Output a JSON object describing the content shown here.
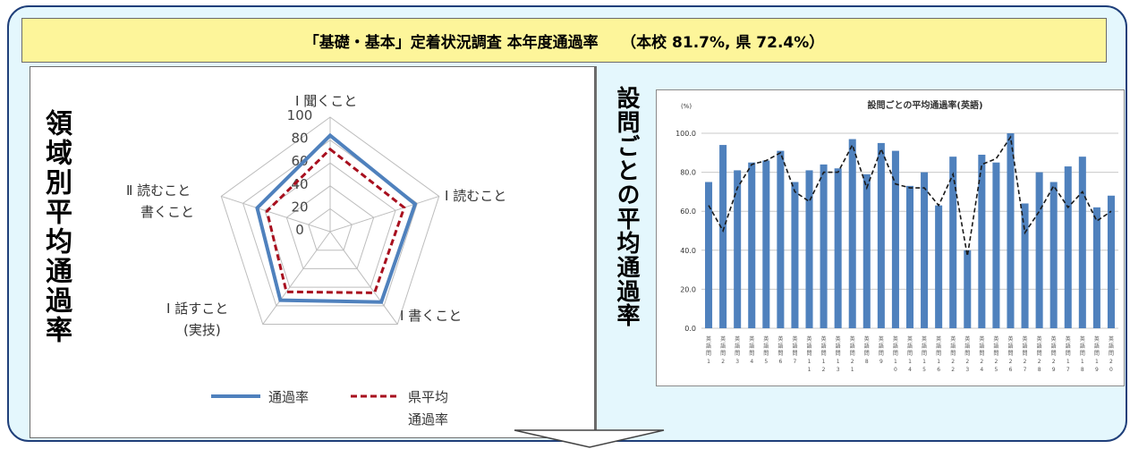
{
  "header": {
    "title": "「基礎・基本」定着状況調査  本年度通過率　　（本校  81.7%, 県  72.4%）"
  },
  "left_vertical_title": "領域別平均通過率",
  "right_vertical_title": "設問ごとの平均通過率",
  "chart_data": [
    {
      "type": "radar",
      "axes": [
        "Ⅰ 聞くこと",
        "Ⅰ 読むこと",
        "Ⅰ 書くこと",
        "Ⅰ 話すこと(実技)",
        "Ⅱ 読むこと書くこと"
      ],
      "ticks": [
        "0",
        "20",
        "40",
        "60",
        "80",
        "100"
      ],
      "range": [
        0,
        100
      ],
      "series": [
        {
          "name": "通過率",
          "color": "#4f81bd",
          "style": "solid",
          "values": [
            84,
            78,
            76,
            74,
            67
          ]
        },
        {
          "name": "県平均通過率",
          "color": "#a80f1e",
          "style": "dashed",
          "values": [
            72,
            68,
            66,
            65,
            58
          ]
        }
      ]
    },
    {
      "type": "bar",
      "title": "設問ごとの平均通過率(英語)",
      "ylabel": "(%)",
      "ylim": [
        0,
        100
      ],
      "yticks": [
        "0.0",
        "20.0",
        "40.0",
        "60.0",
        "80.0",
        "100.0"
      ],
      "grid": true,
      "categories": [
        "1",
        "2",
        "3",
        "4",
        "5",
        "6",
        "7",
        "8",
        "9",
        "10",
        "11",
        "12",
        "13",
        "14",
        "15",
        "16",
        "17",
        "18",
        "19",
        "20",
        "21",
        "22",
        "23",
        "24",
        "25",
        "26",
        "27",
        "28",
        "29"
      ],
      "category_labels": [
        "1",
        "2",
        "3",
        "4",
        "5",
        "6",
        "7",
        "11",
        "12",
        "13",
        "21",
        "8",
        "9",
        "10",
        "14",
        "15",
        "16",
        "22",
        "23",
        "24",
        "25",
        "26",
        "27",
        "28",
        "29",
        "17",
        "18",
        "19",
        "20"
      ],
      "series": [
        {
          "name": "本校",
          "type": "bar",
          "color": "#4f81bd",
          "values": [
            75,
            94,
            81,
            85,
            86,
            91,
            75,
            81,
            84,
            82,
            97,
            79,
            95,
            91,
            73,
            80,
            63,
            88,
            40,
            89,
            85,
            100,
            64,
            80,
            75,
            83,
            88,
            62,
            68
          ]
        },
        {
          "name": "県",
          "type": "line",
          "color": "#1a1a1a",
          "style": "dashed",
          "values": [
            63,
            50,
            72,
            84,
            86,
            90,
            70,
            65,
            80,
            80,
            94,
            72,
            92,
            74,
            72,
            72,
            63,
            79,
            37,
            84,
            87,
            98,
            49,
            60,
            73,
            62,
            70,
            55,
            60
          ]
        }
      ]
    }
  ]
}
